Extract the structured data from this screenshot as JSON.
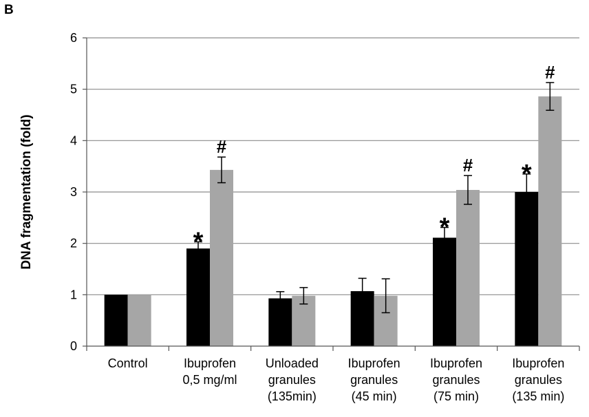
{
  "panel_label": "B",
  "chart_data": {
    "type": "bar",
    "title": "",
    "xlabel": "",
    "ylabel": "DNA fragmentation (fold)",
    "ylim": [
      0,
      6
    ],
    "yticks": [
      "0",
      "1",
      "2",
      "3",
      "4",
      "5",
      "6"
    ],
    "grid": true,
    "legend": "none",
    "categories": [
      [
        "Control"
      ],
      [
        "Ibuprofen",
        "0,5 mg/ml"
      ],
      [
        "Unloaded",
        "granules",
        "(135min)"
      ],
      [
        "Ibuprofen",
        "granules",
        "(45 min)"
      ],
      [
        "Ibuprofen",
        "granules",
        "(75 min)"
      ],
      [
        "Ibuprofen",
        "granules",
        "(135 min)"
      ]
    ],
    "series": [
      {
        "color": "#000000",
        "values": [
          1.0,
          1.9,
          0.93,
          1.07,
          2.11,
          3.0
        ],
        "errors": [
          0,
          0.13,
          0.13,
          0.25,
          0.2,
          0.35
        ],
        "markers": [
          "",
          "*",
          "",
          "",
          "*",
          "*"
        ]
      },
      {
        "color": "#a6a6a6",
        "values": [
          1.0,
          3.43,
          0.98,
          0.98,
          3.04,
          4.86
        ],
        "errors": [
          0,
          0.25,
          0.16,
          0.33,
          0.28,
          0.27
        ],
        "markers": [
          "",
          "#",
          "",
          "",
          "#",
          "#"
        ]
      }
    ]
  }
}
